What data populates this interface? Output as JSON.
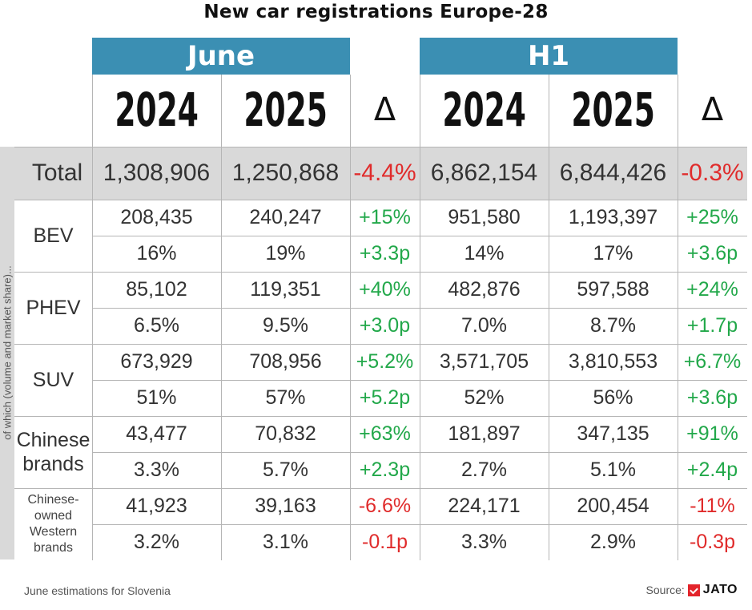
{
  "title": "New car registrations Europe-28",
  "header": {
    "group_june": "June",
    "group_h1": "H1",
    "year_2024": "2024",
    "year_2025": "2025",
    "delta": "Δ"
  },
  "side_label": "of which (volume and market share)...",
  "total": {
    "label": "Total",
    "values": [
      "1,308,906",
      "1,250,868",
      "-4.4%",
      "6,862,154",
      "6,844,426",
      "-0.3%"
    ]
  },
  "groups": [
    {
      "label": "BEV",
      "volume": [
        "208,435",
        "240,247",
        "+15%",
        "951,580",
        "1,193,397",
        "+25%"
      ],
      "share": [
        "16%",
        "19%",
        "+3.3p",
        "14%",
        "17%",
        "+3.6p"
      ]
    },
    {
      "label": "PHEV",
      "volume": [
        "85,102",
        "119,351",
        "+40%",
        "482,876",
        "597,588",
        "+24%"
      ],
      "share": [
        "6.5%",
        "9.5%",
        "+3.0p",
        "7.0%",
        "8.7%",
        "+1.7p"
      ]
    },
    {
      "label": "SUV",
      "volume": [
        "673,929",
        "708,956",
        "+5.2%",
        "3,571,705",
        "3,810,553",
        "+6.7%"
      ],
      "share": [
        "51%",
        "57%",
        "+5.2p",
        "52%",
        "56%",
        "+3.6p"
      ]
    },
    {
      "label": "Chinese brands",
      "volume": [
        "43,477",
        "70,832",
        "+63%",
        "181,897",
        "347,135",
        "+91%"
      ],
      "share": [
        "3.3%",
        "5.7%",
        "+2.3p",
        "2.7%",
        "5.1%",
        "+2.4p"
      ]
    },
    {
      "label": "Chinese-owned Western brands",
      "volume": [
        "41,923",
        "39,163",
        "-6.6%",
        "224,171",
        "200,454",
        "-11%"
      ],
      "share": [
        "3.2%",
        "3.1%",
        "-0.1p",
        "3.3%",
        "2.9%",
        "-0.3p"
      ]
    }
  ],
  "colors": {
    "header_blue": "#3b8fb3",
    "positive": "#22a84a",
    "negative": "#e02b2b",
    "total_bg": "#d9d9d9",
    "jato_red": "#e3242b"
  },
  "footnote": "June estimations for Slovenia",
  "source": {
    "label": "Source:",
    "brand": "JATO"
  },
  "chart_data": {
    "type": "table",
    "title": "New car registrations Europe-28",
    "column_groups": [
      "June",
      "H1"
    ],
    "columns": [
      "2024",
      "2025",
      "Δ",
      "2024",
      "2025",
      "Δ"
    ],
    "rows": [
      {
        "name": "Total",
        "metric": "volume",
        "values": [
          1308906,
          1250868,
          -4.4,
          6862154,
          6844426,
          -0.3
        ]
      },
      {
        "name": "BEV",
        "metric": "volume",
        "values": [
          208435,
          240247,
          15,
          951580,
          1193397,
          25
        ]
      },
      {
        "name": "BEV",
        "metric": "market share",
        "values": [
          16,
          19,
          3.3,
          14,
          17,
          3.6
        ]
      },
      {
        "name": "PHEV",
        "metric": "volume",
        "values": [
          85102,
          119351,
          40,
          482876,
          597588,
          24
        ]
      },
      {
        "name": "PHEV",
        "metric": "market share",
        "values": [
          6.5,
          9.5,
          3.0,
          7.0,
          8.7,
          1.7
        ]
      },
      {
        "name": "SUV",
        "metric": "volume",
        "values": [
          673929,
          708956,
          5.2,
          3571705,
          3810553,
          6.7
        ]
      },
      {
        "name": "SUV",
        "metric": "market share",
        "values": [
          51,
          57,
          5.2,
          52,
          56,
          3.6
        ]
      },
      {
        "name": "Chinese brands",
        "metric": "volume",
        "values": [
          43477,
          70832,
          63,
          181897,
          347135,
          91
        ]
      },
      {
        "name": "Chinese brands",
        "metric": "market share",
        "values": [
          3.3,
          5.7,
          2.3,
          2.7,
          5.1,
          2.4
        ]
      },
      {
        "name": "Chinese-owned Western brands",
        "metric": "volume",
        "values": [
          41923,
          39163,
          -6.6,
          224171,
          200454,
          -11
        ]
      },
      {
        "name": "Chinese-owned Western brands",
        "metric": "market share",
        "values": [
          3.2,
          3.1,
          -0.1,
          3.3,
          2.9,
          -0.3
        ]
      }
    ]
  }
}
